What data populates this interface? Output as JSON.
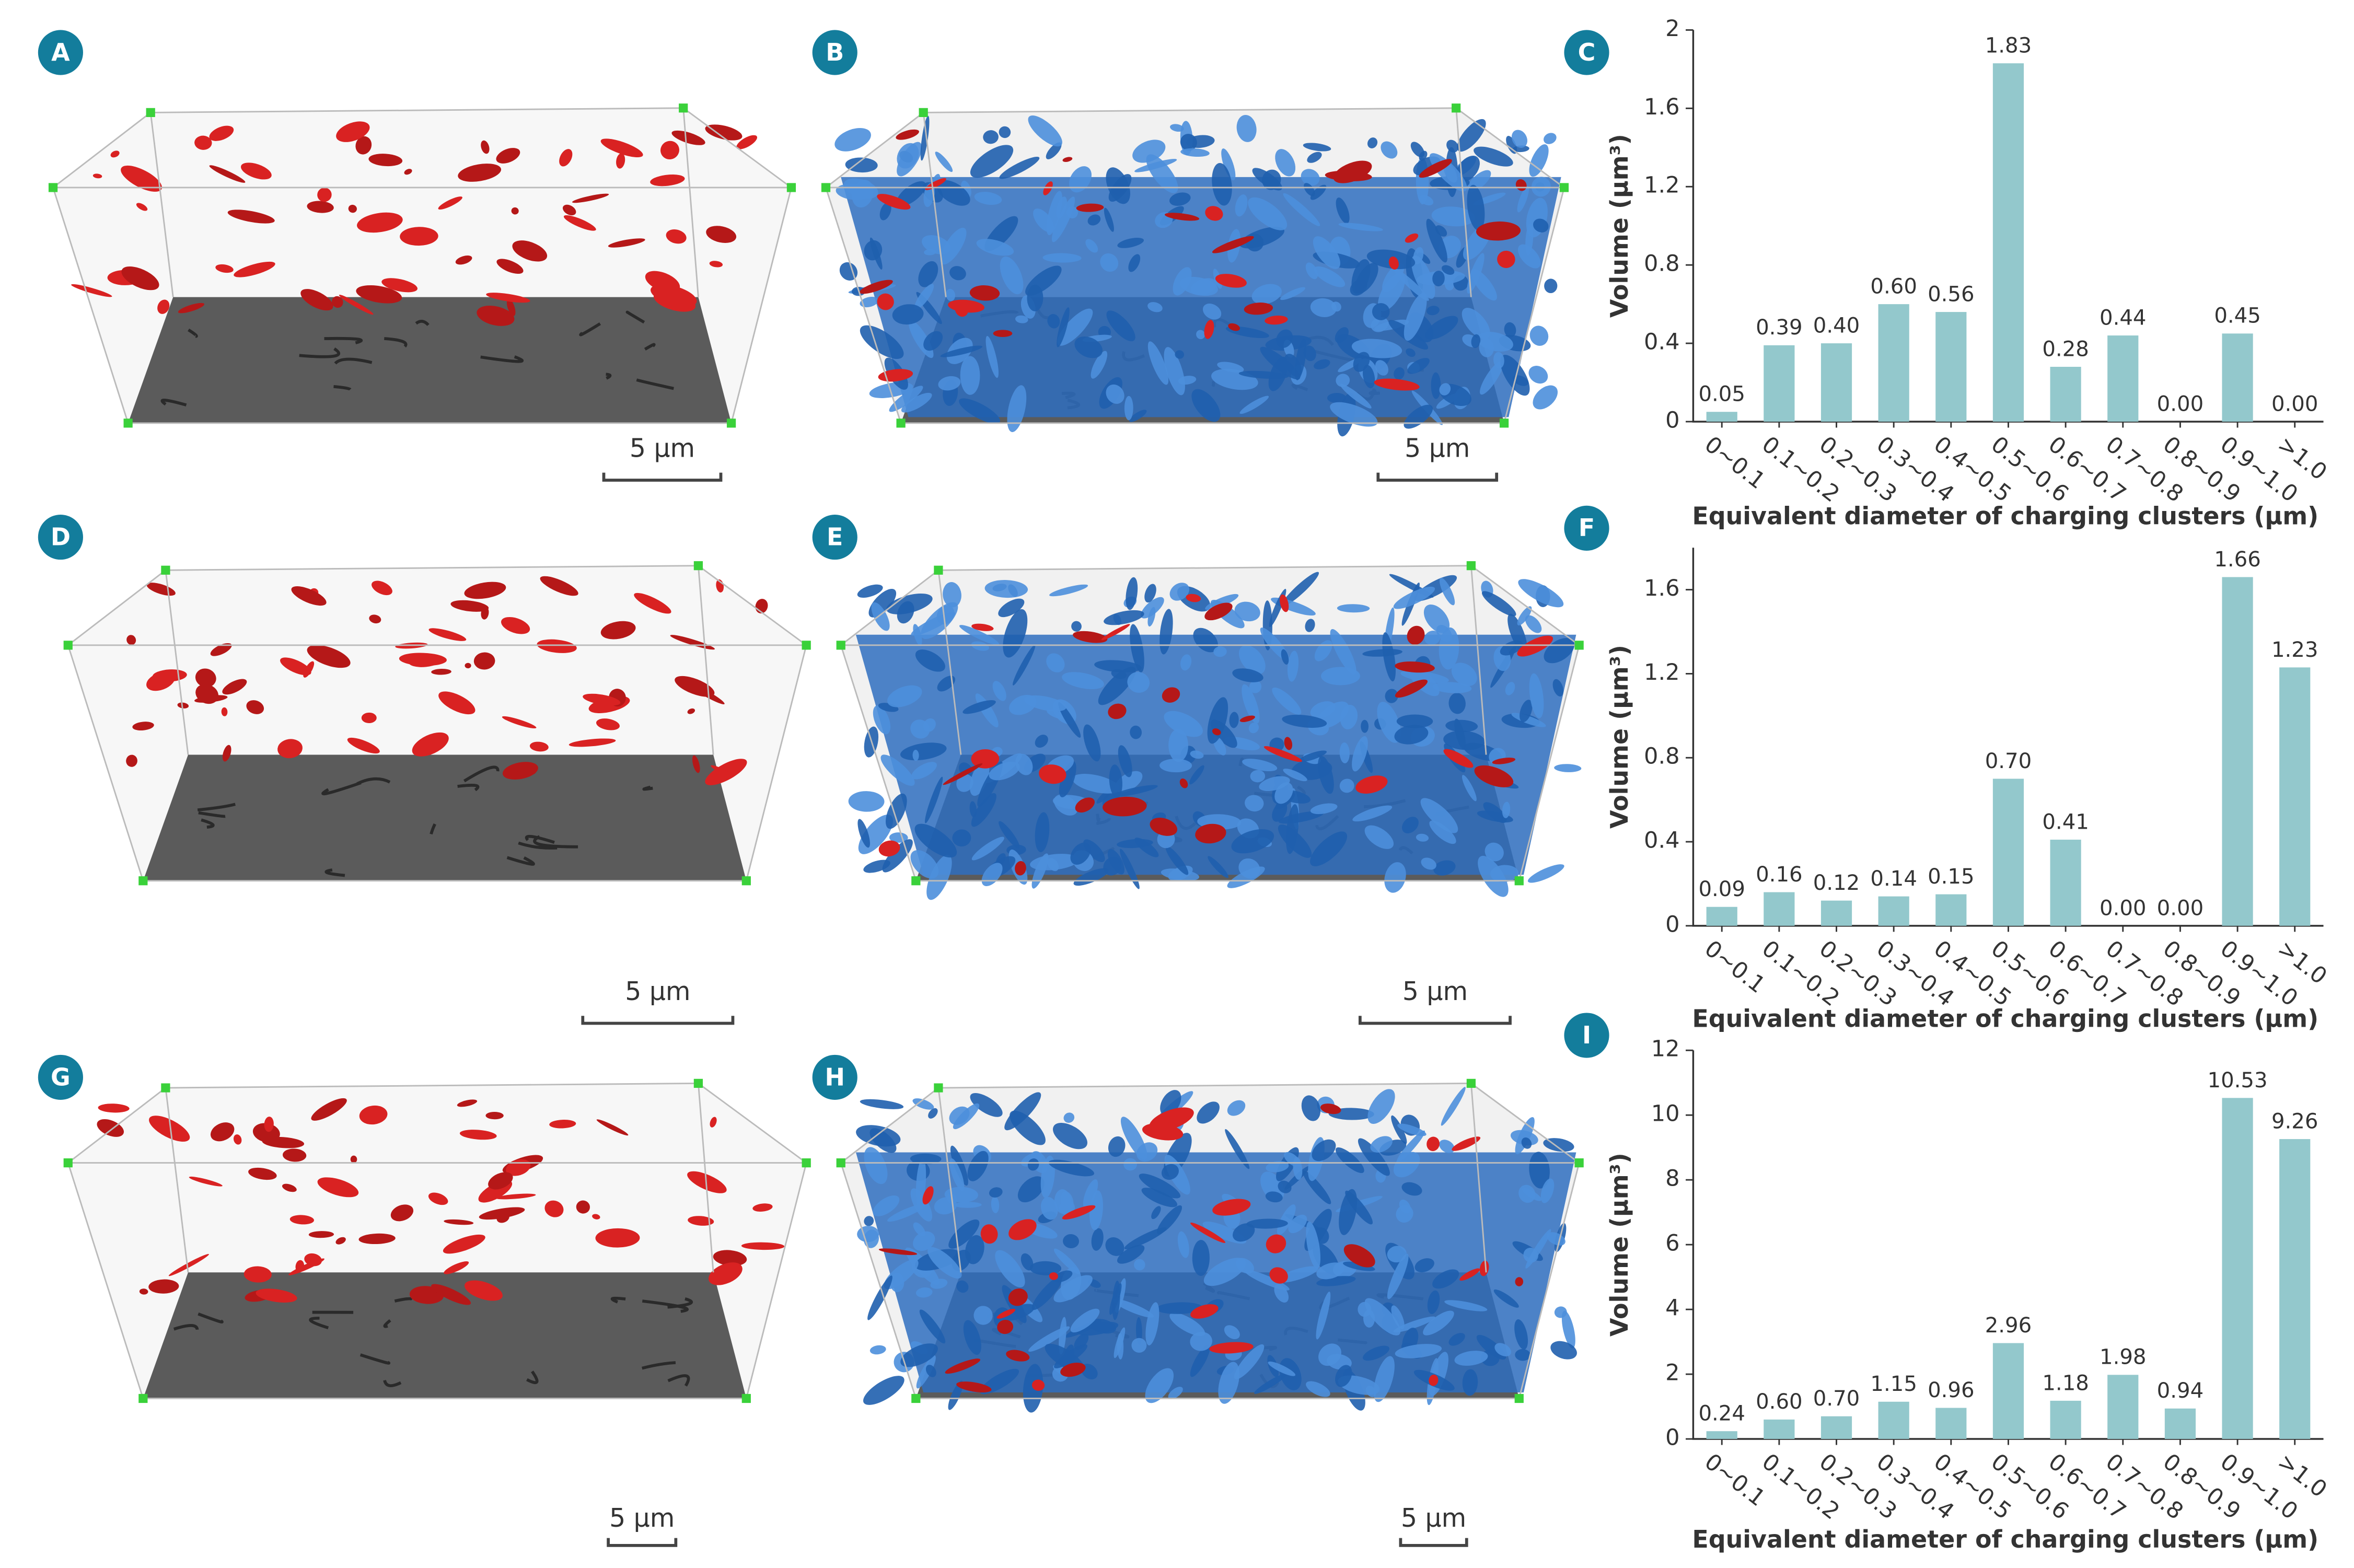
{
  "panels": [
    {
      "label": "A",
      "scale_bar": "5 µm"
    },
    {
      "label": "B",
      "scale_bar": "5 µm"
    },
    {
      "label": "C"
    },
    {
      "label": "D",
      "scale_bar": "5 µm"
    },
    {
      "label": "E",
      "scale_bar": "5 µm"
    },
    {
      "label": "F"
    },
    {
      "label": "G",
      "scale_bar": "5 µm"
    },
    {
      "label": "H",
      "scale_bar": "5 µm"
    },
    {
      "label": "I"
    }
  ],
  "chart_data": [
    {
      "type": "bar",
      "ylabel": "Volume (µm³)",
      "xlabel": "Equivalent diameter of charging clusters (µm)",
      "categories": [
        "0~0.1",
        "0.1~0.2",
        "0.2~0.3",
        "0.3~0.4",
        "0.4~0.5",
        "0.5~0.6",
        "0.6~0.7",
        "0.7~0.8",
        "0.8~0.9",
        "0.9~1.0",
        ">1.0"
      ],
      "values": [
        0.05,
        0.39,
        0.4,
        0.6,
        0.56,
        1.83,
        0.28,
        0.44,
        0.0,
        0.45,
        0.0
      ],
      "value_labels": [
        "0.05",
        "0.39",
        "0.40",
        "0.60",
        "0.56",
        "1.83",
        "0.28",
        "0.44",
        "0.00",
        "0.45",
        "0.00"
      ],
      "color": "#93c8cc",
      "ylim": [
        0,
        2
      ],
      "yticks": [
        0,
        0.4,
        0.8,
        1.2,
        1.6,
        2
      ]
    },
    {
      "type": "bar",
      "ylabel": "Volume (µm³)",
      "xlabel": "Equivalent diameter of charging clusters (µm)",
      "categories": [
        "0~0.1",
        "0.1~0.2",
        "0.2~0.3",
        "0.3~0.4",
        "0.4~0.5",
        "0.5~0.6",
        "0.6~0.7",
        "0.7~0.8",
        "0.8~0.9",
        "0.9~1.0",
        ">1.0"
      ],
      "values": [
        0.09,
        0.16,
        0.12,
        0.14,
        0.15,
        0.7,
        0.41,
        0.0,
        0.0,
        1.66,
        1.23
      ],
      "value_labels": [
        "0.09",
        "0.16",
        "0.12",
        "0.14",
        "0.15",
        "0.70",
        "0.41",
        "0.00",
        "0.00",
        "1.66",
        "1.23"
      ],
      "color": "#93c8cc",
      "ylim": [
        0,
        1.8
      ],
      "yticks": [
        0,
        0.4,
        0.8,
        1.2,
        1.6
      ]
    },
    {
      "type": "bar",
      "ylabel": "Volume (µm³)",
      "xlabel": "Equivalent diameter of charging clusters (µm)",
      "categories": [
        "0~0.1",
        "0.1~0.2",
        "0.2~0.3",
        "0.3~0.4",
        "0.4~0.5",
        "0.5~0.6",
        "0.6~0.7",
        "0.7~0.8",
        "0.8~0.9",
        "0.9~1.0",
        ">1.0"
      ],
      "values": [
        0.24,
        0.6,
        0.7,
        1.15,
        0.96,
        2.96,
        1.18,
        1.98,
        0.94,
        10.53,
        9.26
      ],
      "value_labels": [
        "0.24",
        "0.60",
        "0.70",
        "1.15",
        "0.96",
        "2.96",
        "1.18",
        "1.98",
        "0.94",
        "10.53",
        "9.26"
      ],
      "color": "#93c8cc",
      "ylim": [
        0,
        12
      ],
      "yticks": [
        0,
        2,
        4,
        6,
        8,
        10,
        12
      ]
    }
  ]
}
